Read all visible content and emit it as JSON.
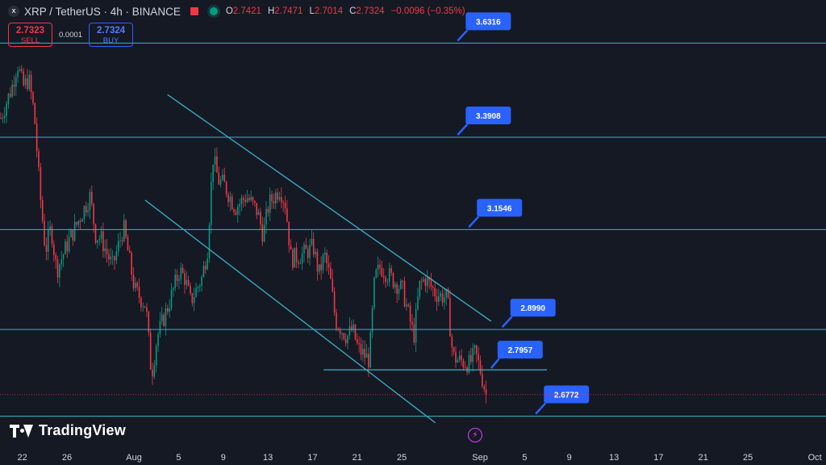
{
  "header": {
    "symbol_icon": "x",
    "title": "XRP / TetherUS · 4h · BINANCE",
    "ohlc": [
      {
        "k": "O",
        "v": "2.7421"
      },
      {
        "k": "H",
        "v": "2.7471"
      },
      {
        "k": "L",
        "v": "2.7014"
      },
      {
        "k": "C",
        "v": "2.7324"
      },
      {
        "k": "",
        "v": "−0.0096 (−0.35%)"
      }
    ]
  },
  "trade": {
    "sell_price": "2.7323",
    "sell_label": "SELL",
    "spread": "0.0001",
    "buy_price": "2.7324",
    "buy_label": "BUY"
  },
  "brand": {
    "name": "TradingView"
  },
  "colors": {
    "background": "#151924",
    "up": "#089981",
    "down": "#f23645",
    "level_line": "#36b3c9",
    "label_bg": "#2962ff",
    "axis_text": "#d1d4dc"
  },
  "chart_data": {
    "type": "candlestick",
    "symbol": "XRP / TetherUS",
    "interval": "4h",
    "exchange": "BINANCE",
    "y_range": [
      2.61,
      3.68
    ],
    "x_range": [
      "2025-07-20",
      "2025-10-02"
    ],
    "x_ticks": [
      {
        "date": "2025-07-22",
        "label": "22"
      },
      {
        "date": "2025-07-26",
        "label": "26"
      },
      {
        "date": "2025-08-01",
        "label": "Aug"
      },
      {
        "date": "2025-08-05",
        "label": "5"
      },
      {
        "date": "2025-08-09",
        "label": "9"
      },
      {
        "date": "2025-08-13",
        "label": "13"
      },
      {
        "date": "2025-08-17",
        "label": "17"
      },
      {
        "date": "2025-08-21",
        "label": "21"
      },
      {
        "date": "2025-08-25",
        "label": "25"
      },
      {
        "date": "2025-09-01",
        "label": "Sep"
      },
      {
        "date": "2025-09-05",
        "label": "5"
      },
      {
        "date": "2025-09-09",
        "label": "9"
      },
      {
        "date": "2025-09-13",
        "label": "13"
      },
      {
        "date": "2025-09-17",
        "label": "17"
      },
      {
        "date": "2025-09-21",
        "label": "21"
      },
      {
        "date": "2025-09-25",
        "label": "25"
      },
      {
        "date": "2025-10-01",
        "label": "Oct"
      }
    ],
    "levels": [
      {
        "value": 3.6316,
        "label": "3.6316",
        "label_date": "2025-08-30"
      },
      {
        "value": 3.3908,
        "label": "3.3908",
        "label_date": "2025-08-30"
      },
      {
        "value": 3.1546,
        "label": "3.1546",
        "label_date": "2025-08-31"
      },
      {
        "value": 2.899,
        "label": "2.8990",
        "label_date": "2025-09-03"
      },
      {
        "value": 2.6772,
        "label": "2.6772",
        "label_date": "2025-09-06"
      }
    ],
    "current_price_line": 2.7324,
    "support_segment": {
      "value": 2.7957,
      "label": "2.7957",
      "from": "2025-08-18",
      "to": "2025-09-07"
    },
    "channel_lines": [
      {
        "from": [
          "2025-08-04",
          3.5
        ],
        "to": [
          "2025-09-02",
          2.92
        ]
      },
      {
        "from": [
          "2025-08-02",
          3.23
        ],
        "to": [
          "2025-08-28",
          2.66
        ]
      }
    ],
    "price_path": [
      [
        "2025-07-20",
        3.44
      ],
      [
        "2025-07-21",
        3.52
      ],
      [
        "2025-07-21T12",
        3.58
      ],
      [
        "2025-07-22",
        3.52
      ],
      [
        "2025-07-22T12",
        3.54
      ],
      [
        "2025-07-23",
        3.45
      ],
      [
        "2025-07-23T12",
        3.25
      ],
      [
        "2025-07-24",
        3.1
      ],
      [
        "2025-07-24T12",
        3.16
      ],
      [
        "2025-07-25",
        3.05
      ],
      [
        "2025-07-26",
        3.12
      ],
      [
        "2025-07-27",
        3.18
      ],
      [
        "2025-07-28",
        3.24
      ],
      [
        "2025-07-28T12",
        3.14
      ],
      [
        "2025-07-29",
        3.13
      ],
      [
        "2025-07-30",
        3.06
      ],
      [
        "2025-07-31",
        3.16
      ],
      [
        "2025-08-01",
        3.0
      ],
      [
        "2025-08-02",
        2.96
      ],
      [
        "2025-08-02T12",
        2.78
      ],
      [
        "2025-08-03",
        2.88
      ],
      [
        "2025-08-04",
        2.96
      ],
      [
        "2025-08-05",
        3.05
      ],
      [
        "2025-08-05T12",
        3.03
      ],
      [
        "2025-08-06",
        2.97
      ],
      [
        "2025-08-07",
        3.03
      ],
      [
        "2025-08-07T12",
        3.1
      ],
      [
        "2025-08-08",
        3.34
      ],
      [
        "2025-08-08T12",
        3.28
      ],
      [
        "2025-08-09",
        3.27
      ],
      [
        "2025-08-10",
        3.21
      ],
      [
        "2025-08-11",
        3.24
      ],
      [
        "2025-08-12",
        3.2
      ],
      [
        "2025-08-12T12",
        3.14
      ],
      [
        "2025-08-13",
        3.22
      ],
      [
        "2025-08-14",
        3.26
      ],
      [
        "2025-08-14T12",
        3.22
      ],
      [
        "2025-08-15",
        3.08
      ],
      [
        "2025-08-16",
        3.09
      ],
      [
        "2025-08-17",
        3.11
      ],
      [
        "2025-08-17T12",
        3.04
      ],
      [
        "2025-08-18",
        3.09
      ],
      [
        "2025-08-18T12",
        3.03
      ],
      [
        "2025-08-19",
        2.92
      ],
      [
        "2025-08-20",
        2.88
      ],
      [
        "2025-08-20T12",
        2.9
      ],
      [
        "2025-08-21",
        2.85
      ],
      [
        "2025-08-22",
        2.82
      ],
      [
        "2025-08-22T12",
        3.03
      ],
      [
        "2025-08-23",
        3.06
      ],
      [
        "2025-08-24",
        3.03
      ],
      [
        "2025-08-25",
        3.0
      ],
      [
        "2025-08-25T12",
        2.94
      ],
      [
        "2025-08-26",
        2.88
      ],
      [
        "2025-08-26T12",
        3.01
      ],
      [
        "2025-08-27",
        3.03
      ],
      [
        "2025-08-28",
        2.99
      ],
      [
        "2025-08-29",
        2.98
      ],
      [
        "2025-08-29T12",
        2.83
      ],
      [
        "2025-08-30",
        2.82
      ],
      [
        "2025-08-31",
        2.81
      ],
      [
        "2025-08-31T12",
        2.84
      ],
      [
        "2025-09-01",
        2.79
      ],
      [
        "2025-09-01T12",
        2.73
      ]
    ]
  }
}
